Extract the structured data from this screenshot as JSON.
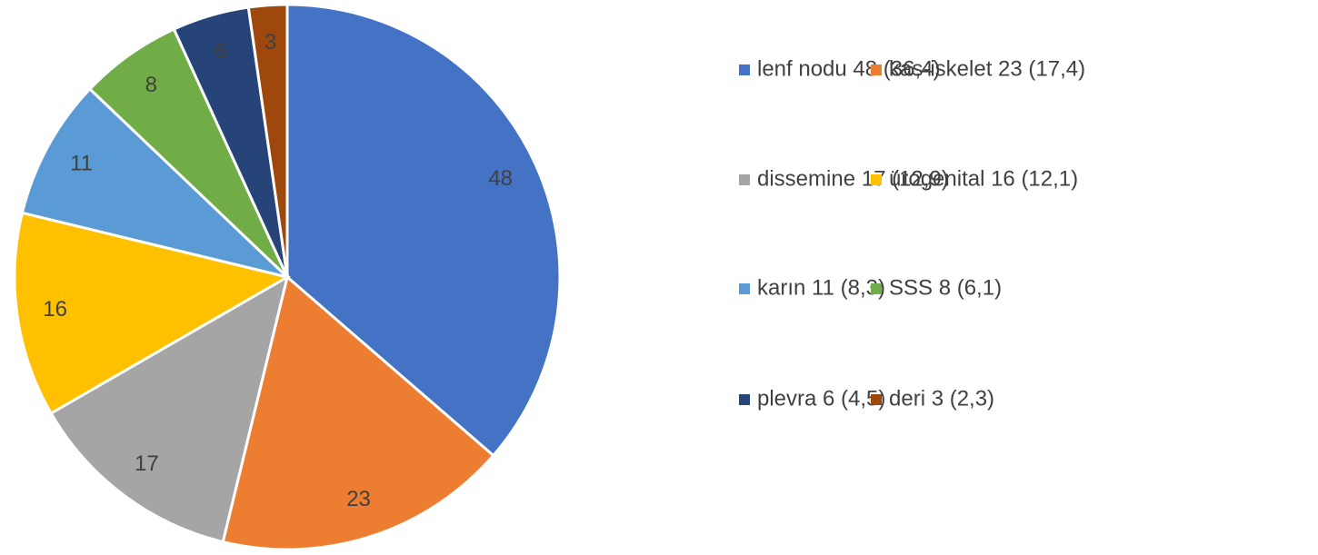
{
  "chart_data": {
    "type": "pie",
    "series": [
      {
        "name": "lenf nodu 48 (36,4)",
        "color": "#4472c4",
        "values": [
          48
        ]
      },
      {
        "name": "kas-iskelet 23 (17,4)",
        "color": "#ed7d31",
        "values": [
          23
        ]
      },
      {
        "name": "dissemine 17 (12,9)",
        "color": "#a5a5a5",
        "values": [
          17
        ]
      },
      {
        "name": "ürogenital  16 (12,1)",
        "color": "#ffc000",
        "values": [
          16
        ]
      },
      {
        "name": "karın 11 (8,3)",
        "color": "#5b9bd5",
        "values": [
          11
        ]
      },
      {
        "name": "SSS 8 (6,1)",
        "color": "#70ad47",
        "values": [
          8
        ]
      },
      {
        "name": "plevra 6 (4,5)",
        "color": "#264478",
        "values": [
          6
        ]
      },
      {
        "name": "deri 3 (2,3)",
        "color": "#9e480e",
        "values": [
          3
        ]
      }
    ],
    "legend": "right"
  }
}
